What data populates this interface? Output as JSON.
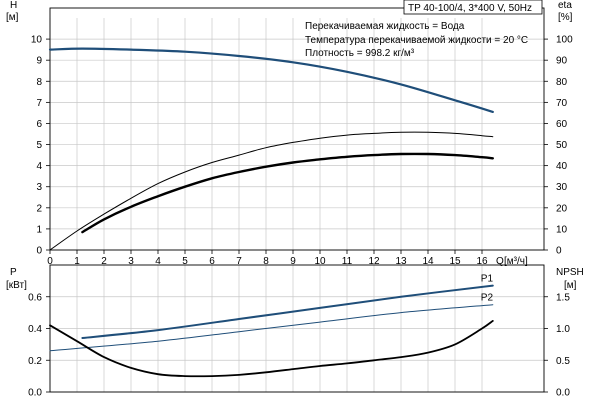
{
  "chart_data": [
    {
      "type": "line",
      "id": "upper",
      "title": "TP 40-100/4, 3*400 V, 50Hz",
      "info": [
        "Перекачиваемая жидкость = Вода",
        "Температура перекачиваемой жидкости = 20 °C",
        "Плотность = 998.2 кг/м³"
      ],
      "xlabel": "Q [м³/ч]",
      "xlabel_name": "Q",
      "xlabel_unit": "[м³/ч]",
      "xlim": [
        0,
        17
      ],
      "xticks": [
        0,
        1,
        2,
        3,
        4,
        5,
        6,
        7,
        8,
        9,
        10,
        11,
        12,
        13,
        14,
        15,
        16
      ],
      "ylabel_left_name": "H",
      "ylabel_left_unit": "[м]",
      "ylim_left": [
        0,
        11
      ],
      "yticks_left": [
        0,
        1,
        2,
        3,
        4,
        5,
        6,
        7,
        8,
        9,
        10
      ],
      "ylabel_right_name": "eta",
      "ylabel_right_unit": "[%]",
      "ylim_right": [
        0,
        110
      ],
      "yticks_right": [
        0,
        10,
        20,
        30,
        40,
        50,
        60,
        70,
        80,
        90,
        100
      ],
      "grid": true,
      "series": [
        {
          "axis": "left",
          "color": "#1f4e79",
          "width": 2.2,
          "x": [
            0,
            1.2,
            3,
            5,
            7,
            9,
            11,
            13,
            15,
            16.4
          ],
          "y": [
            9.5,
            9.55,
            9.5,
            9.4,
            9.2,
            8.9,
            8.45,
            7.85,
            7.1,
            6.55
          ]
        },
        {
          "axis": "right",
          "color": "#000000",
          "width": 1.0,
          "x": [
            0,
            1,
            2,
            3,
            4,
            5,
            6,
            7,
            8,
            9,
            10,
            11,
            12,
            13,
            14,
            15,
            16,
            16.4
          ],
          "y": [
            0,
            9,
            17,
            24.5,
            31.5,
            37,
            41.5,
            45,
            48.5,
            51,
            53,
            54.5,
            55.3,
            55.8,
            55.8,
            55.3,
            54.2,
            53.7
          ]
        },
        {
          "axis": "left",
          "color": "#000000",
          "width": 2.4,
          "x": [
            1.2,
            2,
            3,
            4,
            5,
            6,
            7,
            8,
            9,
            10,
            11,
            12,
            13,
            14,
            15,
            16,
            16.4
          ],
          "y": [
            0.85,
            1.45,
            2.05,
            2.55,
            3.0,
            3.4,
            3.7,
            3.95,
            4.15,
            4.3,
            4.42,
            4.5,
            4.55,
            4.55,
            4.5,
            4.4,
            4.35
          ]
        }
      ]
    },
    {
      "type": "line",
      "id": "lower",
      "ylabel_left_name": "P",
      "ylabel_left_unit": "[кВт]",
      "ylim_left": [
        0,
        0.8
      ],
      "yticks_left": [
        0.0,
        0.2,
        0.4,
        0.6
      ],
      "ylabel_right_name": "NPSH",
      "ylabel_right_unit": "[м]",
      "ylim_right": [
        0,
        2.0
      ],
      "yticks_right": [
        0.0,
        0.5,
        1.0,
        1.5
      ],
      "xlim": [
        0,
        17
      ],
      "grid": true,
      "series": [
        {
          "name": "P1",
          "axis": "left",
          "color": "#1f4e79",
          "width": 2.0,
          "x": [
            1.2,
            4,
            7,
            10,
            13,
            16.4
          ],
          "y": [
            0.34,
            0.39,
            0.46,
            0.53,
            0.6,
            0.67
          ]
        },
        {
          "name": "P2",
          "axis": "left",
          "color": "#1f4e79",
          "width": 1.0,
          "x": [
            0,
            4,
            7,
            10,
            13,
            16.4
          ],
          "y": [
            0.26,
            0.32,
            0.38,
            0.44,
            0.5,
            0.55
          ]
        },
        {
          "axis": "right",
          "color": "#000000",
          "width": 1.8,
          "x": [
            0,
            1,
            2,
            3,
            4,
            5,
            6,
            7,
            8,
            9,
            10,
            11,
            12,
            13,
            14,
            15,
            16,
            16.4
          ],
          "y": [
            1.05,
            0.8,
            0.55,
            0.38,
            0.28,
            0.25,
            0.25,
            0.27,
            0.31,
            0.36,
            0.41,
            0.45,
            0.5,
            0.55,
            0.62,
            0.75,
            1.0,
            1.12
          ]
        }
      ]
    }
  ]
}
